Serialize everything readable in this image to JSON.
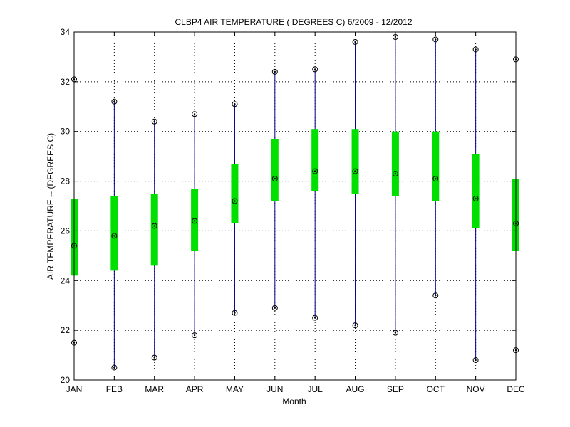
{
  "chart_data": {
    "type": "box",
    "title": "CLBP4  AIR TEMPERATURE ( DEGREES C) 6/2009 - 12/2012",
    "xlabel": "Month",
    "ylabel": "AIR TEMPERATURE -- (DEGREES C)",
    "ylim": [
      20,
      34
    ],
    "yticks": [
      20,
      22,
      24,
      26,
      28,
      30,
      32,
      34
    ],
    "grid": true,
    "categories": [
      "JAN",
      "FEB",
      "MAR",
      "APR",
      "MAY",
      "JUN",
      "JUL",
      "AUG",
      "SEP",
      "OCT",
      "NOV",
      "DEC"
    ],
    "min": [
      21.5,
      20.5,
      20.9,
      21.8,
      22.7,
      22.9,
      22.5,
      22.2,
      21.9,
      23.4,
      20.8,
      21.2
    ],
    "q1": [
      24.2,
      24.4,
      24.6,
      25.2,
      26.3,
      27.2,
      27.6,
      27.5,
      27.4,
      27.2,
      26.1,
      25.2
    ],
    "median": [
      25.4,
      25.8,
      26.2,
      26.4,
      27.2,
      28.1,
      28.4,
      28.4,
      28.3,
      28.1,
      27.3,
      26.3
    ],
    "q3": [
      27.3,
      27.4,
      27.5,
      27.7,
      28.7,
      29.7,
      30.1,
      30.1,
      30.0,
      30.0,
      29.1,
      28.1
    ],
    "max": [
      32.1,
      31.2,
      30.4,
      30.7,
      31.1,
      32.4,
      32.5,
      33.6,
      33.8,
      33.7,
      33.3,
      32.9
    ],
    "colors": {
      "whisker": "#00008b",
      "box": "#00e000",
      "marker": "#000000",
      "grid": "#000000"
    }
  }
}
